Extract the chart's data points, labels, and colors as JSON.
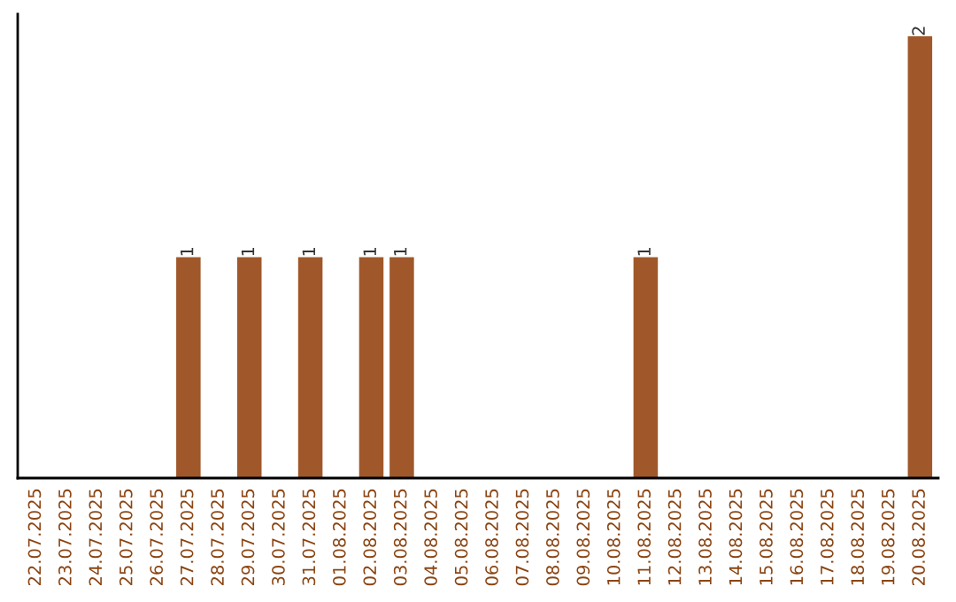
{
  "chart_data": {
    "type": "bar",
    "categories": [
      "22.07.2025",
      "23.07.2025",
      "24.07.2025",
      "25.07.2025",
      "26.07.2025",
      "27.07.2025",
      "28.07.2025",
      "29.07.2025",
      "30.07.2025",
      "31.07.2025",
      "01.08.2025",
      "02.08.2025",
      "03.08.2025",
      "04.08.2025",
      "05.08.2025",
      "06.08.2025",
      "07.08.2025",
      "08.08.2025",
      "09.08.2025",
      "10.08.2025",
      "11.08.2025",
      "12.08.2025",
      "13.08.2025",
      "14.08.2025",
      "15.08.2025",
      "16.08.2025",
      "17.08.2025",
      "18.08.2025",
      "19.08.2025",
      "20.08.2025"
    ],
    "values": [
      0,
      0,
      0,
      0,
      0,
      1,
      0,
      1,
      0,
      1,
      0,
      1,
      1,
      0,
      0,
      0,
      0,
      0,
      0,
      0,
      1,
      0,
      0,
      0,
      0,
      0,
      0,
      0,
      0,
      2
    ],
    "value_labels": [
      null,
      null,
      null,
      null,
      null,
      "1",
      null,
      "1",
      null,
      "1",
      null,
      "1",
      "1",
      null,
      null,
      null,
      null,
      null,
      null,
      null,
      "1",
      null,
      null,
      null,
      null,
      null,
      null,
      null,
      null,
      "2"
    ],
    "color": "#a0582a",
    "grid": false,
    "legend": false
  }
}
